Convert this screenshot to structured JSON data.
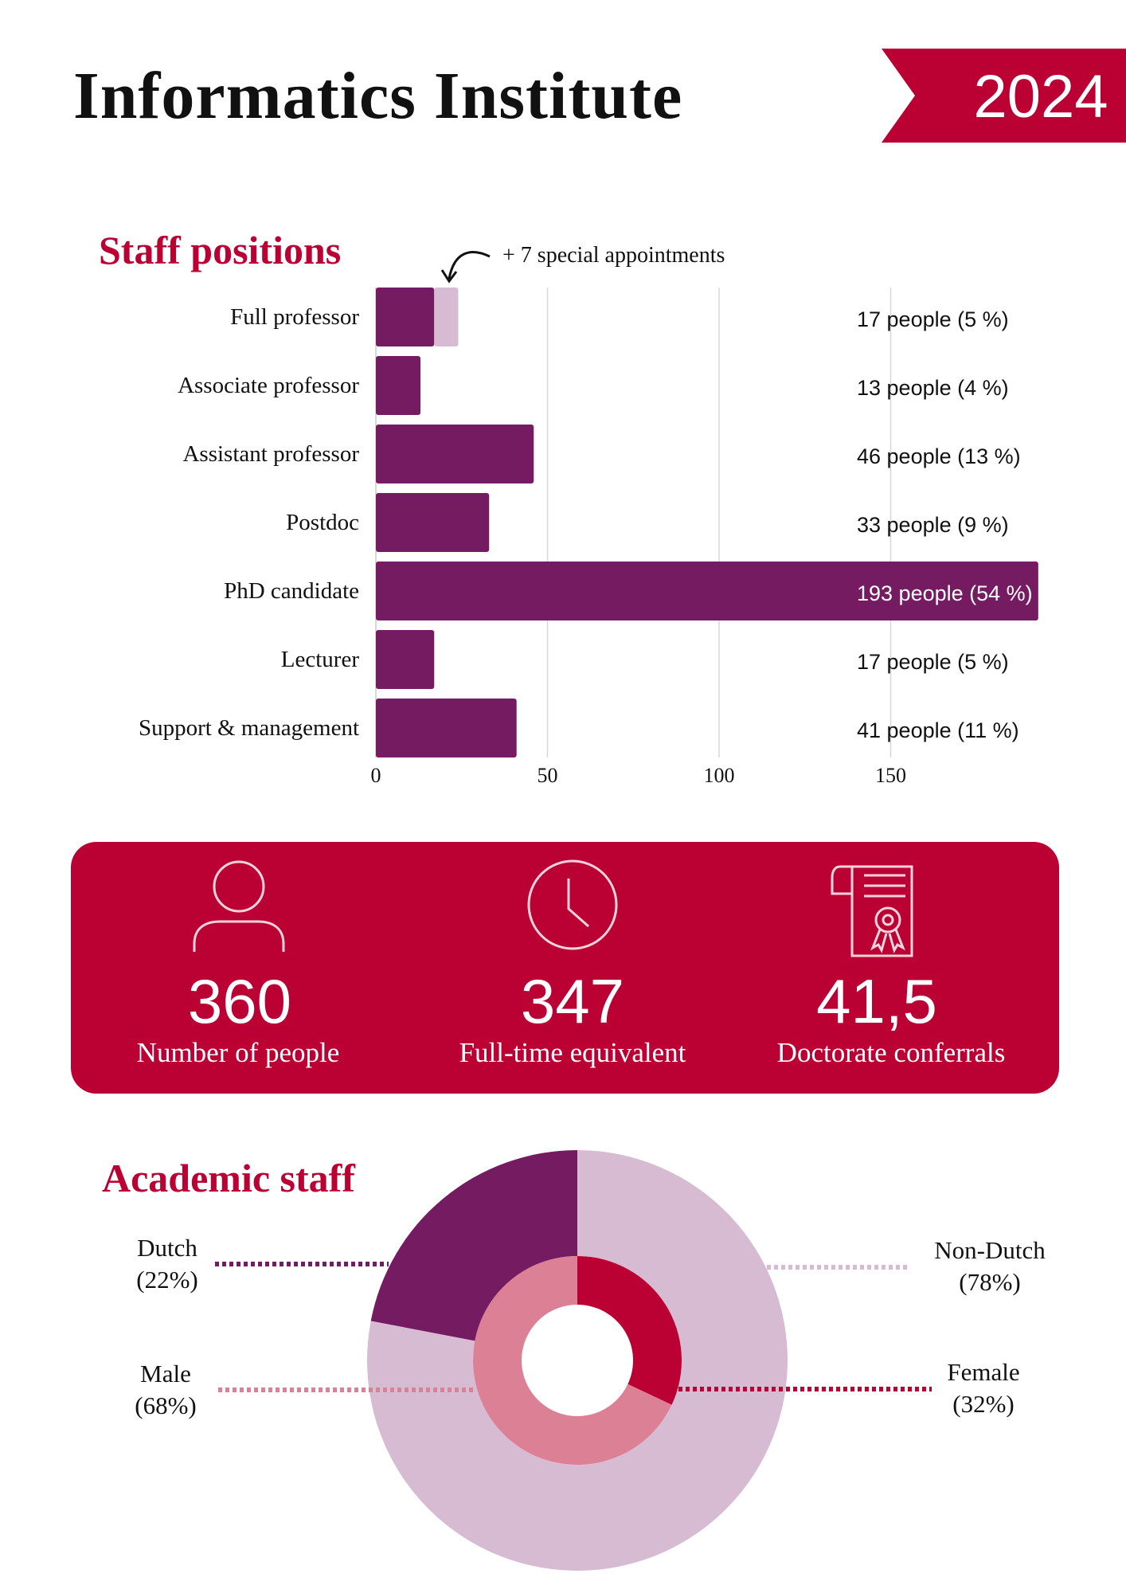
{
  "header": {
    "title": "Informatics Institute",
    "year": "2024"
  },
  "colors": {
    "purple": "#741b62",
    "lilac": "#d6bbd3",
    "red": "#bb0033",
    "pink": "#dc8096"
  },
  "stats": [
    {
      "icon": "person-icon",
      "value": "360",
      "label": "Number of people"
    },
    {
      "icon": "clock-icon",
      "value": "347",
      "label": "Full-time equivalent"
    },
    {
      "icon": "certificate-icon",
      "value": "41,5",
      "label": "Doctorate conferrals"
    }
  ],
  "chart_data": [
    {
      "type": "bar",
      "title": "Staff positions",
      "annotation": "+ 7 special appointments",
      "categories": [
        "Full professor",
        "Associate professor",
        "Assistant professor",
        "Postdoc",
        "PhD candidate",
        "Lecturer",
        "Support & management"
      ],
      "values": [
        17,
        13,
        46,
        33,
        193,
        17,
        41
      ],
      "extra": [
        7,
        0,
        0,
        0,
        0,
        0,
        0
      ],
      "value_labels": [
        "17 people  (5 %)",
        "13 people  (4 %)",
        "46 people  (13 %)",
        "33 people  (9 %)",
        "193 people  (54 %)",
        "17 people  (5 %)",
        "41 people  (11 %)"
      ],
      "xticks": [
        "0",
        "50",
        "100",
        "150"
      ],
      "xtick_values": [
        0,
        50,
        100,
        150
      ],
      "xlim": [
        0,
        200
      ],
      "orientation": "horizontal"
    },
    {
      "type": "pie",
      "title": "Academic staff",
      "rings": [
        {
          "name": "nationality",
          "slices": [
            {
              "label": "Dutch",
              "value": 22,
              "pct": "(22%)"
            },
            {
              "label": "Non-Dutch",
              "value": 78,
              "pct": "(78%)"
            }
          ]
        },
        {
          "name": "gender",
          "slices": [
            {
              "label": "Female",
              "value": 32,
              "pct": "(32%)"
            },
            {
              "label": "Male",
              "value": 68,
              "pct": "(68%)"
            }
          ]
        }
      ]
    }
  ]
}
